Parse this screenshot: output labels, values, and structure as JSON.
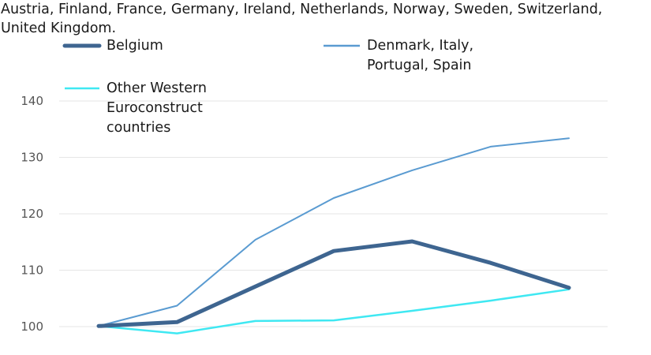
{
  "note": "Austria, Finland, France, Germany, Ireland, Netherlands, Norway, Sweden, Switzerland, United Kingdom.",
  "chart_data": {
    "type": "line",
    "title": "",
    "xlabel": "",
    "ylabel": "",
    "x": [
      1,
      2,
      3,
      4,
      5,
      6,
      7
    ],
    "ylim": [
      100,
      140
    ],
    "yticks": [
      100,
      110,
      120,
      130,
      140
    ],
    "grid": true,
    "legend_position": "top",
    "series": [
      {
        "name": "Belgium",
        "color": "#3e6590",
        "values": [
          100.1,
          100.8,
          107.1,
          113.4,
          115.1,
          111.3,
          106.9
        ]
      },
      {
        "name": "Denmark, Italy, Portugal, Spain",
        "color": "#5a9bd1",
        "values": [
          100.1,
          103.7,
          115.4,
          122.8,
          127.7,
          131.9,
          133.4
        ]
      },
      {
        "name": "Other Western Euroconstruct countries",
        "color": "#3fe8f2",
        "values": [
          100.1,
          98.8,
          101.0,
          101.1,
          102.8,
          104.6,
          106.6
        ]
      }
    ]
  }
}
